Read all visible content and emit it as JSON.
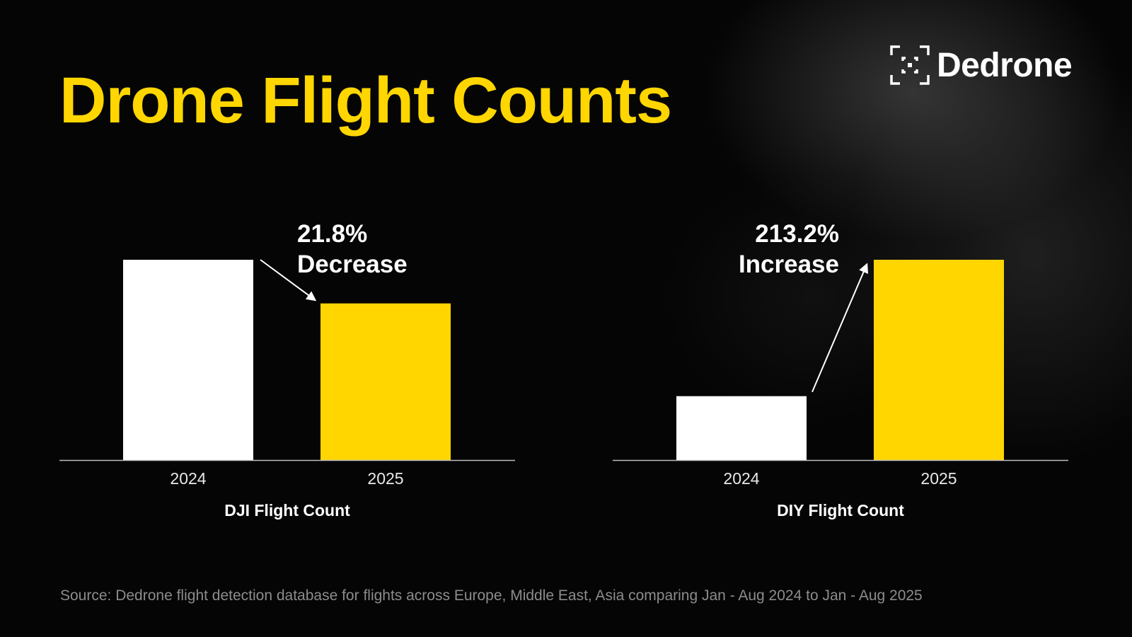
{
  "title": "Drone Flight Counts",
  "brand": {
    "name": "Dedrone",
    "icon": "dedrone-reticle-logo"
  },
  "colors": {
    "background": "#000000",
    "accent": "#ffd600",
    "base_bar": "#ffffff",
    "text": "#ffffff",
    "source_text": "#8c8c8c"
  },
  "source_note": "Source: Dedrone flight detection database for flights across Europe, Middle East, Asia comparing Jan - Aug 2024 to Jan - Aug 2025",
  "chart_data": [
    {
      "type": "bar",
      "xlabel": "DJI Flight Count",
      "categories": [
        "2024",
        "2025"
      ],
      "values": [
        100,
        78.2
      ],
      "bar_colors": [
        "#ffffff",
        "#ffd600"
      ],
      "ylim": [
        0,
        100
      ],
      "annotation": {
        "line1": "21.8%",
        "line2": "Decrease",
        "direction": "down"
      },
      "grid": false
    },
    {
      "type": "bar",
      "xlabel": "DIY Flight Count",
      "categories": [
        "2024",
        "2025"
      ],
      "values": [
        31.9,
        100
      ],
      "bar_colors": [
        "#ffffff",
        "#ffd600"
      ],
      "ylim": [
        0,
        100
      ],
      "annotation": {
        "line1": "213.2%",
        "line2": "Increase",
        "direction": "up"
      },
      "grid": false
    }
  ]
}
